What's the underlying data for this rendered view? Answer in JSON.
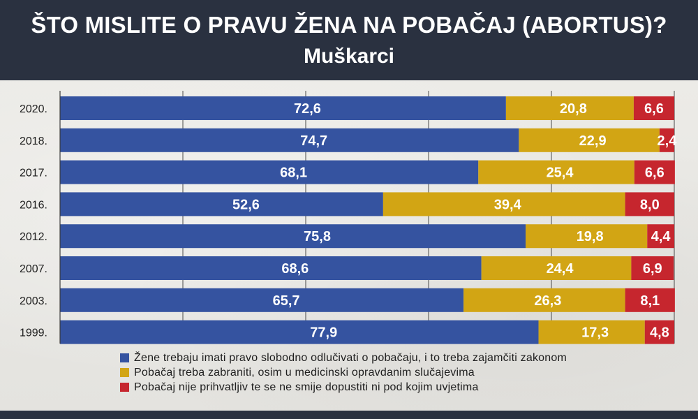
{
  "header": {
    "title": "ŠTO MISLITE O PRAVU ŽENA NA POBAČAJ (ABORTUS)?",
    "subtitle": "Muškarci"
  },
  "colors": {
    "blue": "#3553a0",
    "yellow": "#d2a514",
    "red": "#c6262e",
    "header_bg": "#2a3140"
  },
  "chart_data": {
    "type": "bar",
    "stacked": true,
    "orientation": "horizontal",
    "categories": [
      "2020.",
      "2018.",
      "2017.",
      "2016.",
      "2012.",
      "2007.",
      "2003.",
      "1999."
    ],
    "series": [
      {
        "name": "Žene trebaju imati pravo slobodno odlučivati o pobačaju, i to treba zajamčiti zakonom",
        "color": "#3553a0",
        "values": [
          72.6,
          74.7,
          68.1,
          52.6,
          75.8,
          68.6,
          65.7,
          77.9
        ],
        "labels": [
          "72,6",
          "74,7",
          "68,1",
          "52,6",
          "75,8",
          "68,6",
          "65,7",
          "77,9"
        ]
      },
      {
        "name": "Pobačaj treba zabraniti, osim u medicinski opravdanim slučajevima",
        "color": "#d2a514",
        "values": [
          20.8,
          22.9,
          25.4,
          39.4,
          19.8,
          24.4,
          26.3,
          17.3
        ],
        "labels": [
          "20,8",
          "22,9",
          "25,4",
          "39,4",
          "19,8",
          "24,4",
          "26,3",
          "17,3"
        ]
      },
      {
        "name": "Pobačaj nije prihvatljiv te se ne smije dopustiti ni pod kojim uvjetima",
        "color": "#c6262e",
        "values": [
          6.6,
          2.4,
          6.6,
          8.0,
          4.4,
          6.9,
          8.1,
          4.8
        ],
        "labels": [
          "6,6",
          "2,4",
          "6,6",
          "8,0",
          "4,4",
          "6,9",
          "8,1",
          "4,8"
        ]
      }
    ],
    "xlim": [
      0,
      100
    ],
    "grid": true,
    "legend_position": "bottom"
  }
}
